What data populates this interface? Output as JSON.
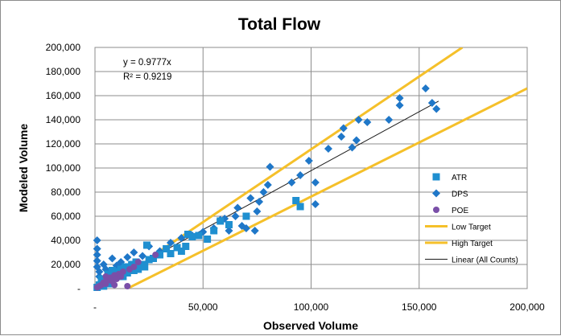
{
  "chart_data": {
    "type": "scatter",
    "title": "Total Flow",
    "xlabel": "Observed Volume",
    "ylabel": "Modeled Volume",
    "xlim": [
      0,
      200000
    ],
    "ylim": [
      0,
      200000
    ],
    "x_ticks": [
      0,
      50000,
      100000,
      150000,
      200000
    ],
    "y_ticks": [
      0,
      20000,
      40000,
      60000,
      80000,
      100000,
      120000,
      140000,
      160000,
      180000,
      200000
    ],
    "x_tick_labels": [
      "-",
      "50,000",
      "100,000",
      "150,000",
      "200,000"
    ],
    "y_tick_labels": [
      "-",
      "20,000",
      "40,000",
      "60,000",
      "80,000",
      "100,000",
      "120,000",
      "140,000",
      "160,000",
      "180,000",
      "200,000"
    ],
    "grid": true,
    "legend_position": "right",
    "equation_lines": [
      "y = 0.9777x",
      "R² = 0.9219"
    ],
    "series": [
      {
        "name": "ATR",
        "marker": "square",
        "color": "#1f8fd0",
        "points": [
          [
            1000,
            1000
          ],
          [
            2000,
            3000
          ],
          [
            3000,
            5000
          ],
          [
            3000,
            8000
          ],
          [
            4000,
            2000
          ],
          [
            5000,
            6000
          ],
          [
            6000,
            12000
          ],
          [
            7000,
            4000
          ],
          [
            8000,
            15000
          ],
          [
            9000,
            9000
          ],
          [
            10000,
            11000
          ],
          [
            11000,
            14000
          ],
          [
            12000,
            16000
          ],
          [
            13000,
            10000
          ],
          [
            14000,
            18000
          ],
          [
            15000,
            13000
          ],
          [
            16000,
            17000
          ],
          [
            17000,
            20000
          ],
          [
            18000,
            15000
          ],
          [
            19000,
            22000
          ],
          [
            20000,
            16000
          ],
          [
            22000,
            20000
          ],
          [
            23000,
            18000
          ],
          [
            24000,
            36000
          ],
          [
            25000,
            24000
          ],
          [
            27000,
            25000
          ],
          [
            30000,
            28000
          ],
          [
            33000,
            33000
          ],
          [
            35000,
            29000
          ],
          [
            38000,
            34000
          ],
          [
            42000,
            35000
          ],
          [
            43000,
            45000
          ],
          [
            45000,
            43000
          ],
          [
            52000,
            41000
          ],
          [
            55000,
            48000
          ],
          [
            58000,
            56000
          ],
          [
            62000,
            53000
          ],
          [
            70000,
            60000
          ],
          [
            93000,
            73000
          ],
          [
            95000,
            68000
          ],
          [
            48000,
            44000
          ],
          [
            40000,
            31000
          ]
        ]
      },
      {
        "name": "DPS",
        "marker": "diamond",
        "color": "#1f77c8",
        "points": [
          [
            1000,
            40000
          ],
          [
            1000,
            33000
          ],
          [
            1000,
            28000
          ],
          [
            1000,
            23000
          ],
          [
            1000,
            18000
          ],
          [
            2000,
            14000
          ],
          [
            2000,
            10000
          ],
          [
            3000,
            6000
          ],
          [
            4000,
            20000
          ],
          [
            5000,
            16000
          ],
          [
            6000,
            12000
          ],
          [
            8000,
            25000
          ],
          [
            10000,
            19000
          ],
          [
            12000,
            22000
          ],
          [
            15000,
            26000
          ],
          [
            18000,
            30000
          ],
          [
            22000,
            27000
          ],
          [
            25000,
            35000
          ],
          [
            30000,
            31000
          ],
          [
            35000,
            38000
          ],
          [
            40000,
            42000
          ],
          [
            45000,
            44000
          ],
          [
            50000,
            47000
          ],
          [
            55000,
            50000
          ],
          [
            58000,
            57000
          ],
          [
            60000,
            58000
          ],
          [
            62000,
            48000
          ],
          [
            65000,
            60000
          ],
          [
            66000,
            67000
          ],
          [
            68000,
            52000
          ],
          [
            70000,
            50000
          ],
          [
            72000,
            75000
          ],
          [
            74000,
            48000
          ],
          [
            75000,
            64000
          ],
          [
            76000,
            72000
          ],
          [
            78000,
            80000
          ],
          [
            80000,
            86000
          ],
          [
            81000,
            101000
          ],
          [
            91000,
            88000
          ],
          [
            95000,
            94000
          ],
          [
            99000,
            106000
          ],
          [
            102000,
            88000
          ],
          [
            102000,
            70000
          ],
          [
            108000,
            116000
          ],
          [
            114000,
            126000
          ],
          [
            115000,
            133000
          ],
          [
            119000,
            117000
          ],
          [
            121000,
            123000
          ],
          [
            122000,
            140000
          ],
          [
            126000,
            138000
          ],
          [
            136000,
            140000
          ],
          [
            141000,
            152000
          ],
          [
            141000,
            158000
          ],
          [
            153000,
            166000
          ],
          [
            156000,
            154000
          ],
          [
            158000,
            149000
          ]
        ]
      },
      {
        "name": "POE",
        "marker": "circle",
        "color": "#7a4fa8",
        "points": [
          [
            1000,
            1000
          ],
          [
            2000,
            2000
          ],
          [
            3000,
            3000
          ],
          [
            4000,
            5000
          ],
          [
            5000,
            4000
          ],
          [
            6000,
            7000
          ],
          [
            7000,
            9000
          ],
          [
            8000,
            6000
          ],
          [
            9000,
            11000
          ],
          [
            10000,
            8000
          ],
          [
            11000,
            12000
          ],
          [
            12000,
            10000
          ],
          [
            13000,
            14000
          ],
          [
            15000,
            2000
          ],
          [
            16000,
            16000
          ],
          [
            18000,
            18000
          ],
          [
            20000,
            22000
          ],
          [
            28000,
            28000
          ],
          [
            5000,
            10000
          ],
          [
            9000,
            3000
          ]
        ]
      }
    ],
    "lines": [
      {
        "name": "Low Target",
        "color": "#f5c02a",
        "x": [
          15000,
          200000
        ],
        "y": [
          0,
          166000
        ]
      },
      {
        "name": "High Target",
        "color": "#f5c02a",
        "x": [
          25000,
          170000
        ],
        "y": [
          25000,
          200000
        ]
      },
      {
        "name": "Linear (All Counts)",
        "color": "#1a1a1a",
        "x": [
          0,
          159000
        ],
        "y": [
          0,
          155454
        ]
      }
    ],
    "legend": [
      "ATR",
      "DPS",
      "POE",
      "Low Target",
      "High Target",
      "Linear (All Counts)"
    ]
  }
}
